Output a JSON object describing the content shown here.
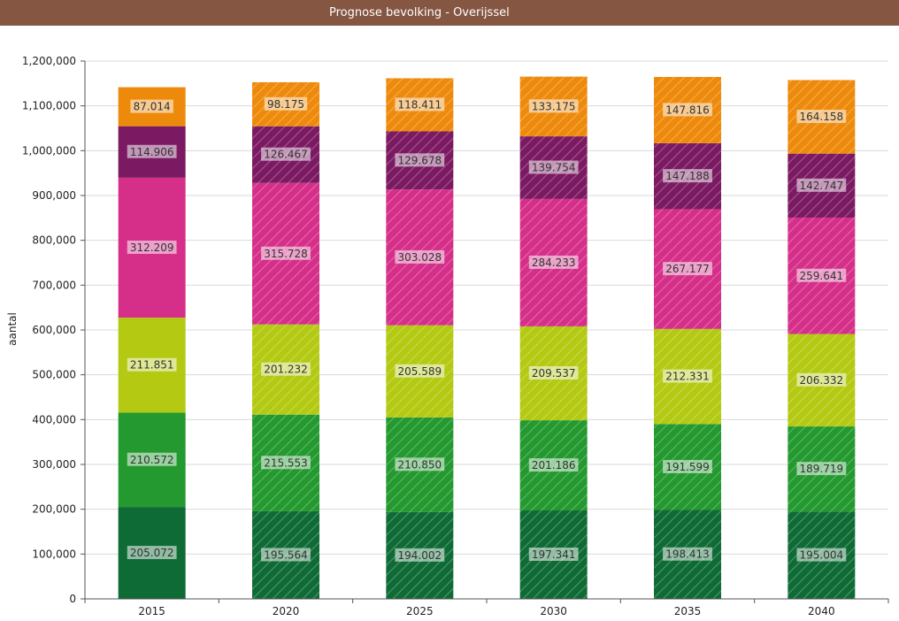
{
  "chart_data": {
    "type": "bar",
    "stacked": true,
    "title": "Prognose bevolking - Overijssel",
    "xlabel": "",
    "ylabel": "aantal",
    "ylim": [
      0,
      1200000
    ],
    "ytick_step": 100000,
    "ytick_labels": [
      "0",
      "100,000",
      "200,000",
      "300,000",
      "400,000",
      "500,000",
      "600,000",
      "700,000",
      "800,000",
      "900,000",
      "1,000,000",
      "1,100,000",
      "1,200,000"
    ],
    "grid": true,
    "legend": "none",
    "categories": [
      "2015",
      "2020",
      "2025",
      "2030",
      "2035",
      "2040"
    ],
    "hatched_from_index": 1,
    "series": [
      {
        "values": [
          205072,
          195564,
          194002,
          197341,
          198413,
          195004
        ],
        "labels": [
          "205.072",
          "195.564",
          "194.002",
          "197.341",
          "198.413",
          "195.004"
        ],
        "color": "#0f6b35"
      },
      {
        "values": [
          210572,
          215553,
          210850,
          201186,
          191599,
          189719
        ],
        "labels": [
          "210.572",
          "215.553",
          "210.850",
          "201.186",
          "191.599",
          "189.719"
        ],
        "color": "#23992f"
      },
      {
        "values": [
          211851,
          201232,
          205589,
          209537,
          212331,
          206332
        ],
        "labels": [
          "211.851",
          "201.232",
          "205.589",
          "209.537",
          "212.331",
          "206.332"
        ],
        "color": "#b3c912"
      },
      {
        "values": [
          312209,
          315728,
          303028,
          284233,
          267177,
          259641
        ],
        "labels": [
          "312.209",
          "315.728",
          "303.028",
          "284.233",
          "267.177",
          "259.641"
        ],
        "color": "#d62f89"
      },
      {
        "values": [
          114906,
          126467,
          129678,
          139754,
          147188,
          142747
        ],
        "labels": [
          "114.906",
          "126.467",
          "129.678",
          "139.754",
          "147.188",
          "142.747"
        ],
        "color": "#7b1a62"
      },
      {
        "values": [
          87014,
          98175,
          118411,
          133175,
          147816,
          164158
        ],
        "labels": [
          "87.014",
          "98.175",
          "118.411",
          "133.175",
          "147.816",
          "164.158"
        ],
        "color": "#ee8a0b"
      }
    ]
  }
}
